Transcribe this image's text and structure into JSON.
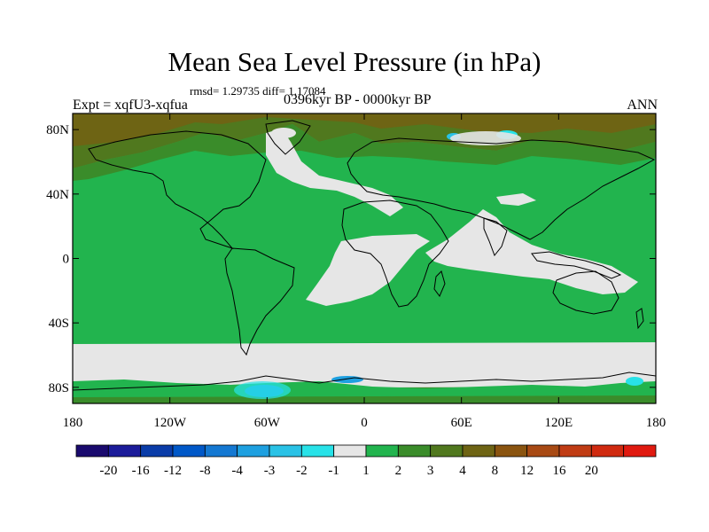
{
  "title": "Mean Sea Level Pressure (in hPa)",
  "stats_text": "rmsd= 1.29735 diff= 1.17084",
  "left_label": "Expt = xqfU3-xqfua",
  "center_label": "0396kyr BP - 0000kyr BP",
  "right_label": "ANN",
  "axes": {
    "lon_ticks": [
      {
        "value": -180,
        "label": "180"
      },
      {
        "value": -120,
        "label": "120W"
      },
      {
        "value": -60,
        "label": "60W"
      },
      {
        "value": 0,
        "label": "0"
      },
      {
        "value": 60,
        "label": "60E"
      },
      {
        "value": 120,
        "label": "120E"
      },
      {
        "value": 180,
        "label": "180"
      }
    ],
    "lat_ticks": [
      {
        "value": 80,
        "label": "80N"
      },
      {
        "value": 40,
        "label": "40N"
      },
      {
        "value": 0,
        "label": "0"
      },
      {
        "value": -40,
        "label": "40S"
      },
      {
        "value": -80,
        "label": "80S"
      }
    ],
    "lon_range": [
      -180,
      180
    ],
    "lat_range": [
      -90,
      90
    ]
  },
  "colorbar": {
    "colors": [
      "#1a0a6e",
      "#1c1c9a",
      "#0a3ca8",
      "#0058c8",
      "#1478d2",
      "#1ea0e0",
      "#2ac2e6",
      "#28e2e8",
      "#e6e6e6",
      "#22b44e",
      "#3a8c2a",
      "#50781e",
      "#6e6414",
      "#8a5410",
      "#a84a14",
      "#c03c14",
      "#d02a10",
      "#e01a10"
    ],
    "labels": [
      "-20",
      "-16",
      "-12",
      "-8",
      "-4",
      "-3",
      "-2",
      "-1",
      "1",
      "2",
      "3",
      "4",
      "8",
      "12",
      "16",
      "20"
    ]
  },
  "map_colors": {
    "positive_1_2": "#22b44e",
    "near_zero": "#e6e6e6",
    "positive_2_3": "#3a8c2a",
    "positive_3_4": "#50781e",
    "positive_4_8": "#6e6414",
    "negative_1_2": "#28e2e8",
    "negative_2_3": "#2ac2e6",
    "negative_3_4": "#1ea0e0",
    "coastline": "#000000"
  }
}
